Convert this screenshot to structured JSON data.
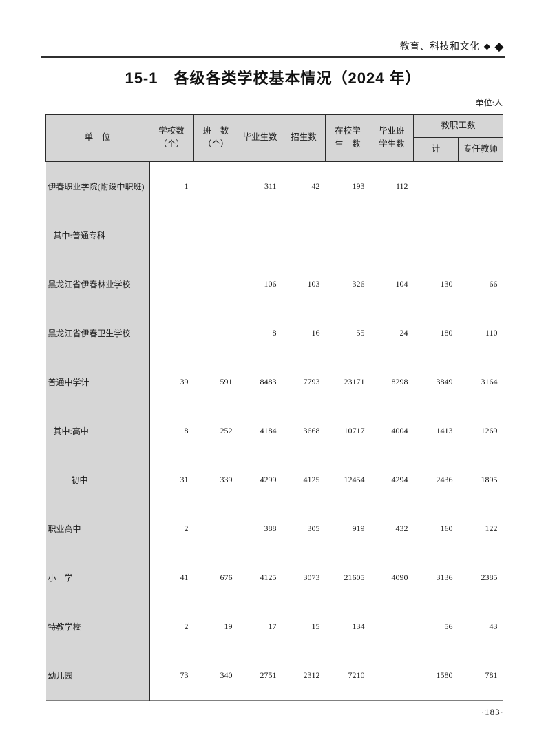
{
  "page": {
    "section_header": "教育、科技和文化",
    "diamond_small": "◆",
    "diamond_large": "◆",
    "title": "15-1　各级各类学校基本情况（2024 年）",
    "unit_note": "单位:人",
    "page_number": "·183·"
  },
  "table": {
    "headers": {
      "unit": "单　位",
      "school_count": "学校数\n（个）",
      "class_count": "班　数\n（个）",
      "graduates": "毕业生数",
      "entrants": "招生数",
      "enrolled": "在校学\n生　数",
      "graduating_class": "毕业班\n学生数",
      "staff_group": "教职工数",
      "staff_total": "计",
      "full_time_teachers": "专任教师"
    },
    "rows": [
      {
        "label": "伊春职业学院(附设中职班)",
        "indent": 0,
        "values": [
          "1",
          "",
          "311",
          "42",
          "193",
          "112",
          "",
          ""
        ]
      },
      {
        "label": "其中:普通专科",
        "indent": 1,
        "values": [
          "",
          "",
          "",
          "",
          "",
          "",
          "",
          ""
        ]
      },
      {
        "label": "黑龙江省伊春林业学校",
        "indent": 0,
        "values": [
          "",
          "",
          "106",
          "103",
          "326",
          "104",
          "130",
          "66"
        ]
      },
      {
        "label": "黑龙江省伊春卫生学校",
        "indent": 0,
        "values": [
          "",
          "",
          "8",
          "16",
          "55",
          "24",
          "180",
          "110"
        ]
      },
      {
        "label": "普通中学计",
        "indent": 0,
        "values": [
          "39",
          "591",
          "8483",
          "7793",
          "23171",
          "8298",
          "3849",
          "3164"
        ]
      },
      {
        "label": "其中:高中",
        "indent": 1,
        "values": [
          "8",
          "252",
          "4184",
          "3668",
          "10717",
          "4004",
          "1413",
          "1269"
        ]
      },
      {
        "label": "初中",
        "indent": 2,
        "values": [
          "31",
          "339",
          "4299",
          "4125",
          "12454",
          "4294",
          "2436",
          "1895"
        ]
      },
      {
        "label": "职业高中",
        "indent": 0,
        "values": [
          "2",
          "",
          "388",
          "305",
          "919",
          "432",
          "160",
          "122"
        ]
      },
      {
        "label": "小　学",
        "indent": 0,
        "values": [
          "41",
          "676",
          "4125",
          "3073",
          "21605",
          "4090",
          "3136",
          "2385"
        ]
      },
      {
        "label": "特教学校",
        "indent": 0,
        "values": [
          "2",
          "19",
          "17",
          "15",
          "134",
          "",
          "56",
          "43"
        ]
      },
      {
        "label": "幼儿园",
        "indent": 0,
        "values": [
          "73",
          "340",
          "2751",
          "2312",
          "7210",
          "",
          "1580",
          "781"
        ]
      }
    ]
  }
}
